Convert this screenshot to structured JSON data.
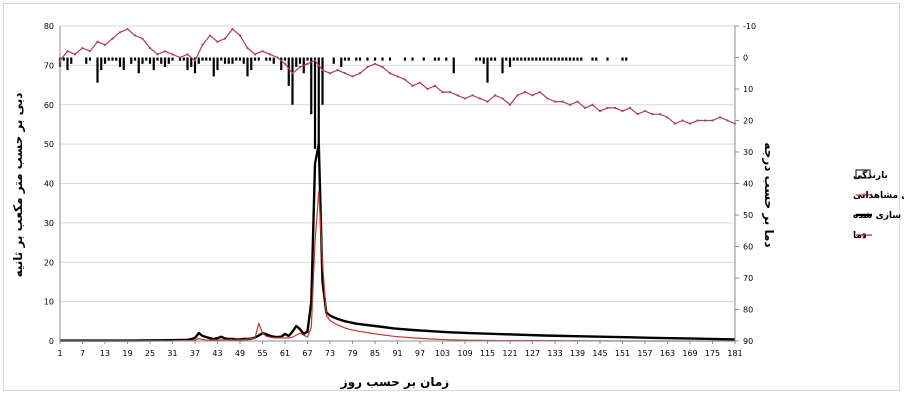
{
  "chart_data": {
    "type": "line",
    "x_axis": {
      "label": "زمان بر حسب روز",
      "ticks": [
        1,
        7,
        13,
        19,
        25,
        31,
        37,
        43,
        49,
        55,
        61,
        67,
        73,
        79,
        85,
        91,
        97,
        103,
        109,
        115,
        121,
        127,
        133,
        139,
        145,
        151,
        157,
        163,
        169,
        175,
        181
      ],
      "range": [
        1,
        181
      ]
    },
    "y_left": {
      "label": "دبی بر حسب متر مکعب بر ثانیه",
      "ticks": [
        0,
        10,
        20,
        30,
        40,
        50,
        60,
        70,
        80
      ],
      "range": [
        0,
        80
      ]
    },
    "y_right": {
      "label": "دما بر حسب درجه",
      "ticks": [
        "-10",
        "0",
        "10",
        "20",
        "30",
        "40",
        "50",
        "60",
        "70",
        "80",
        "90"
      ],
      "range": [
        -10,
        90
      ],
      "inverted": true
    },
    "grid": "horizontal",
    "legend_position": "right",
    "legend": [
      {
        "name": "بارندگی",
        "style": "bar-outline",
        "color": "#000000"
      },
      {
        "name": "دبی مشاهداتی",
        "style": "line",
        "color": "#c0392b"
      },
      {
        "name": "دبی شبیه سازی شده",
        "style": "line-thick",
        "color": "#000000"
      },
      {
        "name": "دما",
        "style": "line-marker",
        "color": "#b03a6e"
      }
    ],
    "series": [
      {
        "name": "دبی شبیه سازی شده",
        "axis": "left",
        "x": [
          1,
          10,
          20,
          30,
          35,
          36,
          37,
          38,
          39,
          40,
          41,
          42,
          43,
          44,
          45,
          46,
          47,
          48,
          49,
          50,
          51,
          52,
          53,
          54,
          55,
          56,
          57,
          58,
          59,
          60,
          61,
          62,
          63,
          64,
          65,
          66,
          67,
          68,
          69,
          70,
          71,
          72,
          73,
          74,
          75,
          76,
          77,
          78,
          80,
          85,
          90,
          95,
          100,
          105,
          110,
          120,
          130,
          140,
          150,
          160,
          170,
          181
        ],
        "values": [
          0.1,
          0.1,
          0.1,
          0.2,
          0.3,
          0.5,
          0.8,
          2.0,
          1.3,
          1.0,
          0.7,
          0.5,
          0.7,
          1.1,
          0.6,
          0.5,
          0.5,
          0.4,
          0.4,
          0.5,
          0.5,
          0.6,
          0.9,
          1.4,
          2.0,
          1.7,
          1.3,
          1.1,
          1.0,
          1.1,
          1.8,
          1.3,
          2.4,
          3.8,
          3.0,
          1.8,
          2.4,
          10.0,
          45.0,
          50.0,
          15.0,
          7.2,
          6.5,
          6.0,
          5.6,
          5.3,
          5.0,
          4.8,
          4.4,
          3.8,
          3.2,
          2.8,
          2.5,
          2.2,
          2.0,
          1.7,
          1.4,
          1.2,
          1.0,
          0.8,
          0.6,
          0.4
        ]
      },
      {
        "name": "دبی مشاهداتی",
        "axis": "left",
        "x": [
          1,
          10,
          20,
          30,
          37,
          38,
          39,
          40,
          45,
          50,
          53,
          54,
          55,
          56,
          58,
          60,
          62,
          63,
          64,
          65,
          66,
          67,
          68,
          69,
          70,
          71,
          72,
          73,
          74,
          75,
          76,
          77,
          78,
          80,
          85,
          90,
          95,
          100,
          105,
          110,
          120,
          130,
          150,
          181
        ],
        "values": [
          0.0,
          0.0,
          0.0,
          0.0,
          0.2,
          0.6,
          0.4,
          0.2,
          0.3,
          0.3,
          0.8,
          4.5,
          2.0,
          1.2,
          0.8,
          0.8,
          0.8,
          1.0,
          1.5,
          2.0,
          1.5,
          1.0,
          3.5,
          25.0,
          38.0,
          20.0,
          6.5,
          5.2,
          4.6,
          4.1,
          3.7,
          3.3,
          3.0,
          2.6,
          1.8,
          1.2,
          0.8,
          0.5,
          0.3,
          0.2,
          0.1,
          0.1,
          0.0,
          0.0
        ]
      },
      {
        "name": "دما",
        "axis": "right",
        "x": [
          1,
          3,
          5,
          7,
          9,
          11,
          13,
          15,
          17,
          19,
          21,
          23,
          25,
          27,
          29,
          31,
          33,
          35,
          37,
          39,
          41,
          43,
          45,
          47,
          49,
          51,
          53,
          55,
          57,
          59,
          61,
          63,
          65,
          67,
          69,
          71,
          73,
          75,
          77,
          79,
          81,
          83,
          85,
          87,
          89,
          91,
          93,
          95,
          97,
          99,
          101,
          103,
          105,
          107,
          109,
          111,
          113,
          115,
          117,
          119,
          121,
          123,
          125,
          127,
          129,
          131,
          133,
          135,
          137,
          139,
          141,
          143,
          145,
          147,
          149,
          151,
          153,
          155,
          157,
          159,
          161,
          163,
          165,
          167,
          169,
          171,
          173,
          175,
          177,
          179,
          181
        ],
        "values": [
          1,
          -2,
          -1,
          -3,
          -2,
          -5,
          -4,
          -6,
          -8,
          -9,
          -7,
          -6,
          -3,
          -1,
          -2,
          -1,
          0,
          -1,
          1,
          -4,
          -7,
          -5,
          -6,
          -9,
          -7,
          -3,
          -1,
          -2,
          -1,
          0,
          2,
          5,
          3,
          2,
          1,
          4,
          5,
          4,
          5,
          6,
          5,
          3,
          2,
          3,
          5,
          6,
          7,
          9,
          8,
          10,
          9,
          11,
          11,
          12,
          13,
          12,
          13,
          14,
          12,
          13,
          15,
          12,
          11,
          12,
          11,
          13,
          14,
          14,
          15,
          14,
          16,
          15,
          17,
          16,
          16,
          17,
          16,
          18,
          17,
          18,
          18,
          19,
          21,
          20,
          21,
          20,
          20,
          20,
          19,
          20,
          21
        ]
      },
      {
        "name": "بارندگی",
        "type": "bar",
        "axis": "right",
        "x": [
          1,
          2,
          3,
          4,
          8,
          9,
          11,
          12,
          13,
          14,
          15,
          16,
          17,
          18,
          20,
          21,
          22,
          23,
          24,
          25,
          26,
          27,
          28,
          29,
          30,
          31,
          33,
          34,
          35,
          36,
          37,
          38,
          39,
          40,
          41,
          42,
          43,
          44,
          45,
          46,
          47,
          48,
          49,
          50,
          51,
          52,
          53,
          54,
          56,
          57,
          58,
          60,
          61,
          62,
          63,
          64,
          65,
          66,
          67,
          68,
          69,
          70,
          71,
          74,
          76,
          77,
          78,
          80,
          81,
          83,
          85,
          87,
          89,
          93,
          95,
          98,
          101,
          102,
          104,
          106,
          112,
          113,
          114,
          115,
          116,
          117,
          119,
          120,
          121,
          122,
          123,
          124,
          125,
          126,
          127,
          128,
          129,
          130,
          131,
          132,
          133,
          134,
          135,
          136,
          137,
          138,
          139,
          140,
          143,
          144,
          147,
          151,
          152
        ],
        "values": [
          3,
          1,
          4,
          2,
          2,
          1,
          8,
          4,
          2,
          1,
          1,
          1,
          3,
          4,
          2,
          1,
          5,
          2,
          1,
          2,
          4,
          1,
          2,
          3,
          2,
          1,
          1,
          1,
          4,
          3,
          5,
          2,
          1,
          1,
          1,
          6,
          4,
          1,
          2,
          2,
          2,
          1,
          1,
          2,
          6,
          4,
          1,
          1,
          1,
          1,
          2,
          4,
          1,
          9,
          15,
          3,
          2,
          5,
          1,
          18,
          29,
          29,
          15,
          2,
          3,
          1,
          1,
          1,
          1,
          1,
          1,
          1,
          1,
          1,
          1,
          1,
          1,
          1,
          1,
          5,
          1,
          1,
          2,
          8,
          1,
          1,
          5,
          1,
          3,
          1,
          1,
          1,
          1,
          1,
          1,
          1,
          1,
          1,
          1,
          1,
          1,
          1,
          1,
          1,
          1,
          1,
          1,
          1,
          1,
          1,
          1,
          1,
          1
        ]
      }
    ]
  }
}
